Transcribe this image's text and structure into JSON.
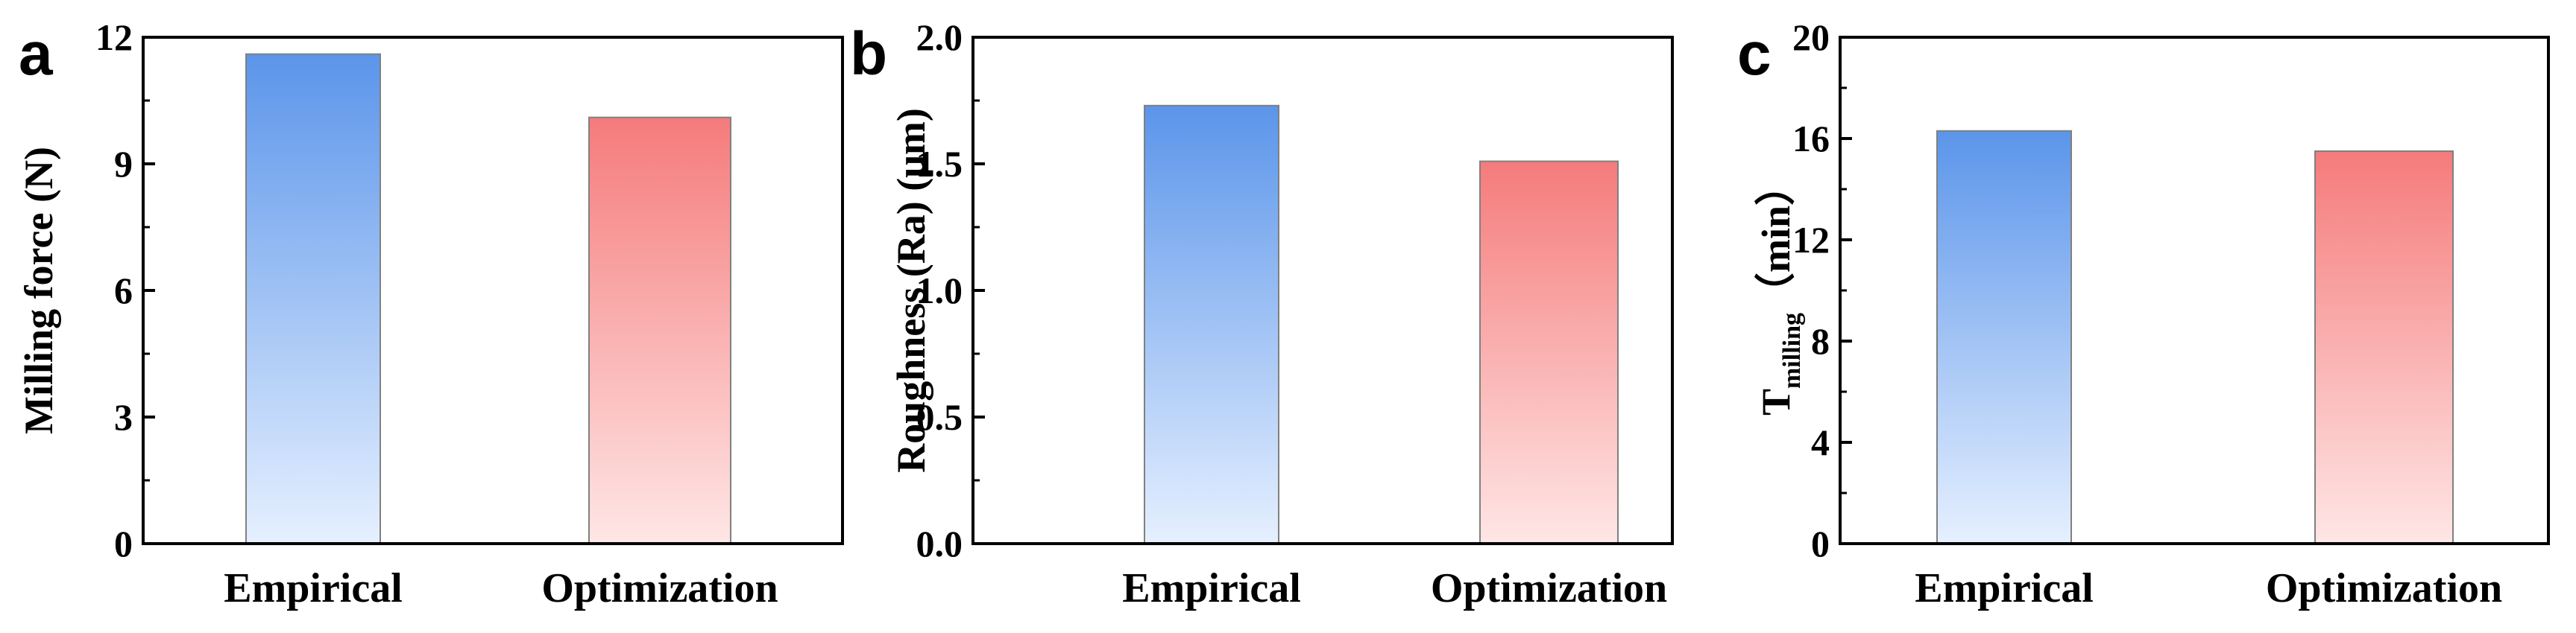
{
  "chart_data": [
    {
      "panel": "a",
      "type": "bar",
      "categories": [
        "Empirical",
        "Optimization"
      ],
      "values": [
        11.6,
        10.1
      ],
      "ylabel": "Milling force (N)",
      "ylim": [
        0,
        12
      ],
      "yticks": [
        "0",
        "3",
        "6",
        "9",
        "12"
      ],
      "grid": false
    },
    {
      "panel": "b",
      "type": "bar",
      "categories": [
        "Empirical",
        "Optimization"
      ],
      "values": [
        1.73,
        1.51
      ],
      "ylabel": "Roughness (Ra) (μm)",
      "ylim": [
        0,
        2.0
      ],
      "yticks": [
        "0.0",
        "0.5",
        "1.0",
        "1.5",
        "2.0"
      ],
      "grid": false
    },
    {
      "panel": "c",
      "type": "bar",
      "categories": [
        "Empirical",
        "Optimization"
      ],
      "values": [
        16.3,
        15.5
      ],
      "ylabel": {
        "main": "T",
        "sub": "milling",
        "rest": "（min）"
      },
      "ylim": [
        0,
        20
      ],
      "yticks": [
        "0",
        "4",
        "8",
        "12",
        "16",
        "20"
      ],
      "grid": false
    }
  ],
  "colors": {
    "empirical_top": "#5b95ea",
    "empirical_bottom": "#e6f0ff",
    "optimization_top": "#f57b7b",
    "optimization_bottom": "#ffe6e6",
    "axis": "#000000",
    "bar_edge": "#808080"
  }
}
